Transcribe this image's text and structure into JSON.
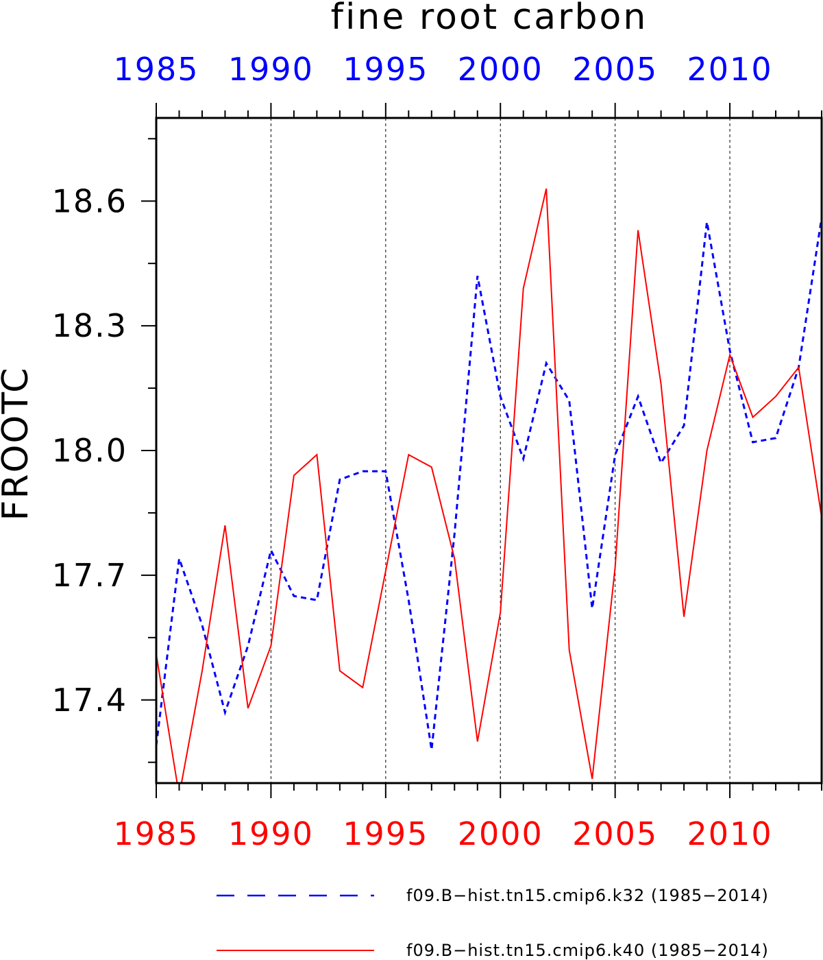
{
  "chart_data": {
    "type": "line",
    "title": "fine root carbon",
    "ylabel": "FROOTC",
    "xlabel": "",
    "xlim": [
      1985,
      2014
    ],
    "ylim": [
      17.2,
      18.8
    ],
    "x_ticks_major": [
      1985,
      1990,
      1995,
      2000,
      2005,
      2010
    ],
    "x_tick_labels": [
      "1985",
      "1990",
      "1995",
      "2000",
      "2005",
      "2010"
    ],
    "y_ticks_major": [
      17.4,
      17.7,
      18.0,
      18.3,
      18.6
    ],
    "y_tick_labels": [
      "17.4",
      "17.7",
      "18.0",
      "18.3",
      "18.6"
    ],
    "grid": "vertical dashed at major x ticks",
    "top_axis_color": "#0000ff",
    "bottom_axis_color": "#ff0000",
    "x": [
      1985,
      1986,
      1987,
      1988,
      1989,
      1990,
      1991,
      1992,
      1993,
      1994,
      1995,
      1996,
      1997,
      1998,
      1999,
      2000,
      2001,
      2002,
      2003,
      2004,
      2005,
      2006,
      2007,
      2008,
      2009,
      2010,
      2011,
      2012,
      2013,
      2014
    ],
    "series": [
      {
        "name": "f09.B−hist.tn15.cmip6.k32 (1985−2014)",
        "color": "#0000ff",
        "dash": "dashed",
        "values": [
          17.29,
          17.74,
          17.58,
          17.37,
          17.53,
          17.76,
          17.65,
          17.64,
          17.93,
          17.95,
          17.95,
          17.64,
          17.28,
          17.8,
          18.42,
          18.13,
          17.98,
          18.21,
          18.12,
          17.62,
          17.99,
          18.13,
          17.97,
          18.06,
          18.55,
          18.24,
          18.02,
          18.03,
          18.2,
          18.56
        ]
      },
      {
        "name": "f09.B−hist.tn15.cmip6.k40 (1985−2014)",
        "color": "#ff0000",
        "dash": "solid",
        "values": [
          17.51,
          17.17,
          17.47,
          17.82,
          17.38,
          17.53,
          17.94,
          17.99,
          17.47,
          17.43,
          17.71,
          17.99,
          17.96,
          17.74,
          17.3,
          17.61,
          18.39,
          18.63,
          17.52,
          17.21,
          17.72,
          18.53,
          18.16,
          17.6,
          18.0,
          18.23,
          18.08,
          18.13,
          18.2,
          17.84
        ]
      }
    ],
    "legend_position": "bottom"
  }
}
